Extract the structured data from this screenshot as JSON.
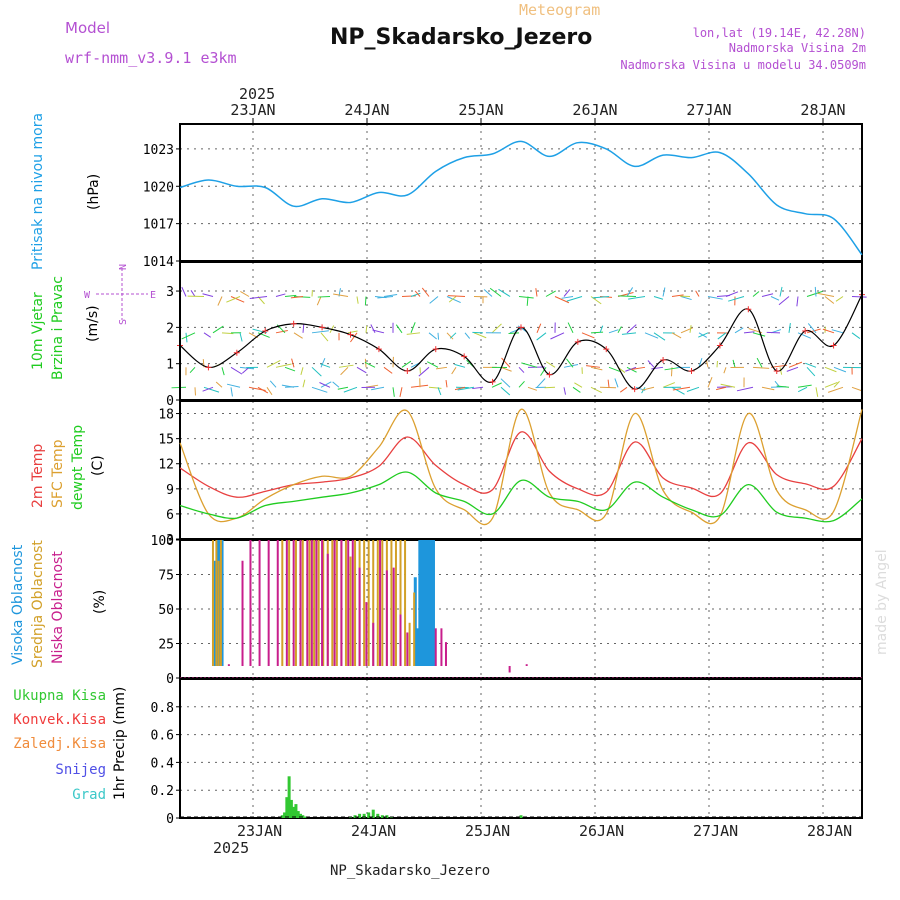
{
  "header": {
    "model_label": "Model",
    "model_name": "wrf-nmm_v3.9.1 e3km",
    "meteogram_label": "Meteogram",
    "station_title": "NP_Skadarsko_Jezero",
    "lonlat": "lon,lat (19.14E, 42.28N)",
    "altitude": "Nadmorska Visina 2m",
    "model_altitude": "Nadmorska Visina u modelu 34.0509m"
  },
  "footer": {
    "station_name": "NP_Skadarsko_Jezero",
    "watermark": "made by Angel"
  },
  "colors": {
    "pressure": "#1ea0e6",
    "temp2m": "#e84040",
    "sfc_temp": "#dca030",
    "dewpt": "#20cc20",
    "wind_speed": "#000000",
    "wind_marker": "#f03030",
    "high_cloud": "#1e96dc",
    "mid_cloud": "#d2a028",
    "low_cloud": "#c81e8c",
    "precip_total": "#32c832",
    "precip_conv": "#f03c3c",
    "precip_frozen": "#f08c3c",
    "snow": "#5050e6",
    "hail": "#3cc8c8",
    "label_purple": "#b450d2"
  },
  "chart_data": [
    {
      "type": "line",
      "panel": "pressure",
      "ylabel_lines": [
        "Pritisak na nivou mora",
        "(hPa)"
      ],
      "ylim": [
        1014,
        1025
      ],
      "yticks": [
        1014,
        1017,
        1020,
        1023
      ],
      "x_days": [
        0,
        0.25,
        0.5,
        0.75,
        1,
        1.25,
        1.5,
        1.75,
        2,
        2.25,
        2.5,
        2.75,
        3,
        3.25,
        3.5,
        3.75,
        4,
        4.25,
        4.5,
        4.75,
        5,
        5.25,
        5.5,
        5.75,
        6
      ],
      "values": [
        1019.9,
        1020.5,
        1020.0,
        1019.9,
        1018.4,
        1019.0,
        1018.7,
        1019.5,
        1019.3,
        1021.2,
        1022.3,
        1022.6,
        1023.6,
        1022.4,
        1023.5,
        1023.0,
        1021.6,
        1022.5,
        1022.3,
        1022.7,
        1021.0,
        1018.5,
        1017.8,
        1017.4,
        1014.5
      ],
      "series_name": "Pritisak na nivou mora"
    },
    {
      "type": "line",
      "panel": "wind",
      "ylabel_lines": [
        "10m Vjetar",
        "Brzina i Pravac",
        "(m/s)"
      ],
      "compass": {
        "n": "N",
        "s": "S",
        "e": "E",
        "w": "W"
      },
      "ylim": [
        0,
        3.8
      ],
      "yticks": [
        0,
        1,
        2,
        3
      ],
      "x_days": [
        0,
        0.25,
        0.5,
        0.75,
        1,
        1.25,
        1.5,
        1.75,
        2,
        2.25,
        2.5,
        2.75,
        3,
        3.25,
        3.5,
        3.75,
        4,
        4.25,
        4.5,
        4.75,
        5,
        5.25,
        5.5,
        5.75,
        6
      ],
      "values": [
        1.5,
        0.9,
        1.3,
        1.9,
        2.1,
        2.0,
        1.8,
        1.4,
        0.8,
        1.4,
        1.2,
        0.5,
        2.0,
        0.7,
        1.6,
        1.4,
        0.3,
        1.1,
        0.8,
        1.5,
        2.5,
        0.8,
        1.9,
        1.5,
        2.9
      ],
      "series_name": "10m Vjetar"
    },
    {
      "type": "line",
      "panel": "temperature",
      "ylabel_lines": [
        "2m Temp",
        "SFC Temp",
        "dewpt Temp",
        "(C)"
      ],
      "ylim": [
        3,
        19.5
      ],
      "yticks": [
        3,
        6,
        9,
        12,
        15,
        18
      ],
      "x_days": [
        0,
        0.25,
        0.5,
        0.75,
        1,
        1.25,
        1.5,
        1.75,
        2,
        2.25,
        2.5,
        2.75,
        3,
        3.25,
        3.5,
        3.75,
        4,
        4.25,
        4.5,
        4.75,
        5,
        5.25,
        5.5,
        5.75,
        6
      ],
      "series": [
        {
          "name": "2m Temp",
          "values": [
            11.5,
            9.3,
            8.0,
            8.7,
            9.5,
            9.8,
            10.3,
            11.7,
            15.2,
            11.8,
            9.5,
            8.9,
            15.8,
            11.1,
            9.0,
            8.6,
            14.6,
            10.3,
            9.1,
            8.4,
            14.5,
            10.7,
            9.6,
            9.3,
            15.0
          ]
        },
        {
          "name": "SFC Temp",
          "values": [
            14.5,
            6.0,
            5.5,
            7.8,
            9.5,
            10.5,
            10.5,
            14.0,
            18.3,
            9.0,
            6.5,
            5.5,
            18.5,
            8.5,
            6.5,
            6.0,
            18.0,
            8.8,
            6.2,
            5.7,
            18.0,
            8.8,
            6.5,
            6.3,
            18.5
          ]
        },
        {
          "name": "dewpt Temp",
          "values": [
            7.0,
            6.0,
            5.5,
            7.0,
            7.5,
            8.0,
            8.5,
            9.5,
            11.0,
            8.5,
            7.5,
            6.0,
            10.0,
            8.0,
            7.5,
            6.5,
            9.8,
            8.0,
            6.5,
            5.8,
            9.5,
            6.2,
            5.5,
            5.2,
            7.8
          ]
        }
      ]
    },
    {
      "type": "bar",
      "panel": "cloud",
      "ylabel_lines": [
        "Visoka Oblacnost",
        "Srednja Oblacnost",
        "Niska Oblacnost",
        "(%)"
      ],
      "ylim": [
        0,
        100
      ],
      "yticks": [
        0,
        25,
        50,
        75,
        100
      ],
      "series": [
        {
          "name": "Visoka Oblacnost",
          "x_days": [
            0.31,
            0.33,
            0.35,
            0.37,
            2.07,
            2.09,
            2.11,
            2.13,
            2.15,
            2.17,
            2.19,
            2.21,
            2.23
          ],
          "values": [
            85,
            100,
            100,
            100,
            73,
            36,
            100,
            100,
            100,
            100,
            100,
            100,
            100
          ]
        },
        {
          "name": "Srednja Oblacnost",
          "x_days": [
            0.29,
            0.32,
            0.34,
            0.36,
            0.9,
            0.96,
            1.02,
            1.08,
            1.14,
            1.18,
            1.22,
            1.26,
            1.3,
            1.34,
            1.38,
            1.42,
            1.46,
            1.5,
            1.54,
            1.58,
            1.62,
            1.66,
            1.7,
            1.74,
            1.78,
            1.82,
            1.86,
            1.9,
            1.94,
            1.98,
            2.02,
            2.06
          ],
          "values": [
            100,
            100,
            85,
            100,
            100,
            100,
            100,
            100,
            100,
            100,
            100,
            100,
            100,
            100,
            100,
            100,
            100,
            88,
            100,
            100,
            100,
            100,
            100,
            100,
            100,
            100,
            100,
            100,
            100,
            100,
            40,
            62
          ]
        },
        {
          "name": "Niska Oblacnost",
          "x_days": [
            0.43,
            0.55,
            0.62,
            0.7,
            0.78,
            0.86,
            0.94,
            1.0,
            1.06,
            1.12,
            1.16,
            1.2,
            1.25,
            1.3,
            1.36,
            1.42,
            1.48,
            1.52,
            1.58,
            1.64,
            1.7,
            1.76,
            1.82,
            1.88,
            1.94,
            2.0,
            2.25,
            2.3,
            2.34,
            2.9,
            3.05
          ],
          "values": [
            10,
            85,
            100,
            100,
            100,
            100,
            100,
            100,
            100,
            100,
            100,
            100,
            100,
            90,
            100,
            100,
            100,
            100,
            80,
            55,
            40,
            100,
            78,
            80,
            46,
            33,
            36,
            36,
            26,
            4,
            10
          ]
        }
      ]
    },
    {
      "type": "bar",
      "panel": "precipitation",
      "ylabel_lines": [
        "1hr Precip (mm)"
      ],
      "legend": [
        "Ukupna Kisa",
        "Konvek.Kisa",
        "Zaledj.Kisa",
        "Snijeg",
        "Grad"
      ],
      "ylim": [
        0,
        1.0
      ],
      "yticks": [
        0,
        0.2,
        0.4,
        0.6,
        0.8
      ],
      "series": [
        {
          "name": "Ukupna Kisa",
          "x_days": [
            0.9,
            0.92,
            0.94,
            0.96,
            0.98,
            1.0,
            1.02,
            1.04,
            1.06,
            1.08,
            1.1,
            1.5,
            1.54,
            1.58,
            1.62,
            1.66,
            1.7,
            1.74,
            1.78,
            1.82,
            1.86,
            3.0
          ],
          "values": [
            0.02,
            0.04,
            0.15,
            0.3,
            0.13,
            0.08,
            0.1,
            0.05,
            0.03,
            0.02,
            0.01,
            0.01,
            0.02,
            0.03,
            0.03,
            0.04,
            0.06,
            0.03,
            0.02,
            0.02,
            0.01,
            0.02
          ]
        }
      ]
    }
  ],
  "axes": {
    "year_label": "2025",
    "day_labels": [
      "23JAN",
      "24JAN",
      "25JAN",
      "26JAN",
      "27JAN",
      "28JAN"
    ],
    "x_start_offset_days": -0.6,
    "x_range_days": [
      0,
      6
    ]
  }
}
